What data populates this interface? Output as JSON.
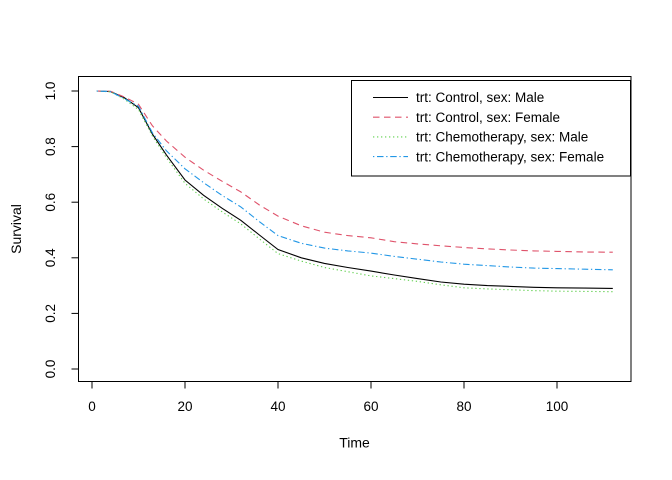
{
  "chart_data": {
    "type": "line",
    "title": "",
    "xlabel": "Time",
    "ylabel": "Survival",
    "x_ticks": {
      "values": [
        0,
        20,
        40,
        60,
        80,
        100
      ],
      "labels": [
        "0",
        "20",
        "40",
        "60",
        "80",
        "100"
      ]
    },
    "y_ticks": {
      "values": [
        0,
        0.2,
        0.4,
        0.6,
        0.8,
        1.0
      ],
      "labels": [
        "0.0",
        "0.2",
        "0.4",
        "0.6",
        "0.8",
        "1.0"
      ]
    },
    "xlim": [
      -3,
      116
    ],
    "ylim": [
      -0.045,
      1.045
    ],
    "grid": false,
    "background": "#ffffff",
    "axis_color": "#000000",
    "legend": {
      "position": "topright",
      "border": true
    },
    "x_shared": [
      1,
      4,
      7,
      10,
      13,
      16,
      20,
      24,
      28,
      32,
      36,
      40,
      45,
      50,
      55,
      60,
      65,
      70,
      75,
      80,
      85,
      90,
      95,
      100,
      106,
      112
    ],
    "series": [
      {
        "id": "control-male",
        "name": "trt: Control, sex: Male",
        "color": "#000000",
        "linetype": "solid",
        "y": [
          1.0,
          0.998,
          0.975,
          0.94,
          0.845,
          0.77,
          0.68,
          0.625,
          0.578,
          0.535,
          0.482,
          0.43,
          0.4,
          0.38,
          0.365,
          0.352,
          0.338,
          0.325,
          0.313,
          0.305,
          0.3,
          0.297,
          0.294,
          0.292,
          0.291,
          0.29
        ]
      },
      {
        "id": "control-female",
        "name": "trt: Control, sex: Female",
        "color": "#DF536B",
        "linetype": "dashed",
        "y": [
          1.0,
          0.999,
          0.978,
          0.952,
          0.875,
          0.82,
          0.762,
          0.715,
          0.675,
          0.637,
          0.59,
          0.55,
          0.515,
          0.492,
          0.48,
          0.472,
          0.458,
          0.45,
          0.443,
          0.437,
          0.432,
          0.428,
          0.425,
          0.423,
          0.421,
          0.42
        ]
      },
      {
        "id": "chemotherapy-male",
        "name": "trt: Chemotherapy, sex: Male",
        "color": "#61D04F",
        "linetype": "dotted",
        "y": [
          1.0,
          0.997,
          0.97,
          0.933,
          0.838,
          0.76,
          0.668,
          0.612,
          0.565,
          0.522,
          0.468,
          0.415,
          0.388,
          0.365,
          0.35,
          0.335,
          0.325,
          0.315,
          0.303,
          0.292,
          0.288,
          0.285,
          0.282,
          0.28,
          0.279,
          0.278
        ]
      },
      {
        "id": "chemotherapy-female",
        "name": "trt: Chemotherapy, sex: Female",
        "color": "#2297E6",
        "linetype": "dotdash",
        "y": [
          1.0,
          0.998,
          0.972,
          0.945,
          0.85,
          0.785,
          0.72,
          0.67,
          0.624,
          0.583,
          0.53,
          0.48,
          0.452,
          0.435,
          0.425,
          0.417,
          0.405,
          0.395,
          0.385,
          0.377,
          0.372,
          0.367,
          0.363,
          0.361,
          0.359,
          0.357
        ]
      }
    ]
  }
}
